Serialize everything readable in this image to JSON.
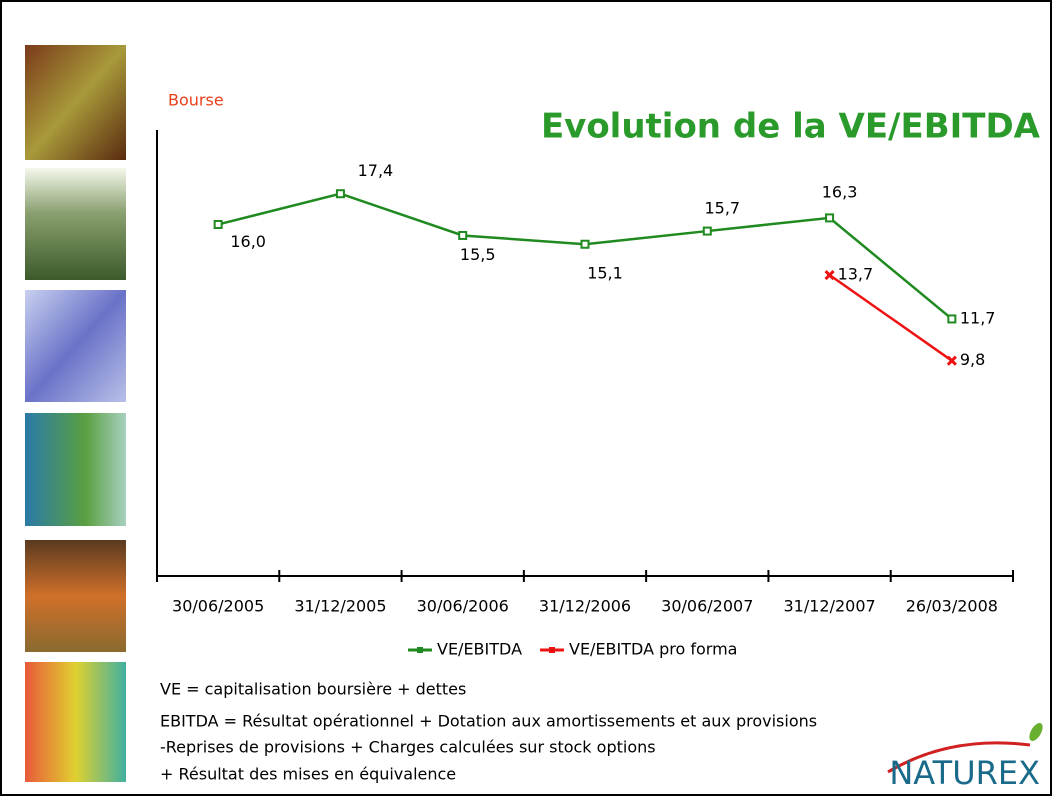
{
  "section_label": "Bourse",
  "chart_data": {
    "type": "line",
    "title": "Evolution de la VE/EBITDA",
    "categories": [
      "30/06/2005",
      "31/12/2005",
      "30/06/2006",
      "31/12/2006",
      "30/06/2007",
      "31/12/2007",
      "26/03/2008"
    ],
    "series": [
      {
        "name": "VE/EBITDA",
        "color": "#1f8a1f",
        "values": [
          16.0,
          17.4,
          15.5,
          15.1,
          15.7,
          16.3,
          11.7
        ],
        "value_labels": [
          "16,0",
          "17,4",
          "15,5",
          "15,1",
          "15,7",
          "16,3",
          "11,7"
        ]
      },
      {
        "name": "VE/EBITDA pro forma",
        "color": "#ee1111",
        "values": [
          null,
          null,
          null,
          null,
          null,
          13.7,
          9.8
        ],
        "value_labels": [
          null,
          null,
          null,
          null,
          null,
          "13,7",
          "9,8"
        ]
      }
    ],
    "ylim": [
      0,
      20.3
    ],
    "legend": "bottom"
  },
  "notes": [
    "VE = capitalisation boursière + dettes",
    "EBITDA = Résultat opérationnel + Dotation aux amortissements et aux provisions",
    "-Reprises de provisions + Charges calculées sur stock options",
    "+ Résultat des mises en équivalence"
  ],
  "logo": "NATUREX"
}
